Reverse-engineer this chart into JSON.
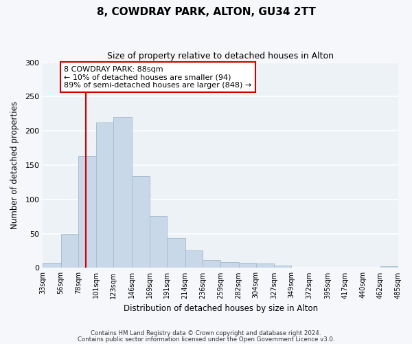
{
  "title": "8, COWDRAY PARK, ALTON, GU34 2TT",
  "subtitle": "Size of property relative to detached houses in Alton",
  "xlabel": "Distribution of detached houses by size in Alton",
  "ylabel": "Number of detached properties",
  "bar_color": "#c8d8e8",
  "bar_edgecolor": "#a8bece",
  "background_color": "#edf2f7",
  "fig_background_color": "#f5f7fa",
  "grid_color": "#ffffff",
  "bins": [
    33,
    56,
    78,
    101,
    123,
    146,
    169,
    191,
    214,
    236,
    259,
    282,
    304,
    327,
    349,
    372,
    395,
    417,
    440,
    462,
    485
  ],
  "counts": [
    7,
    50,
    163,
    212,
    220,
    134,
    76,
    44,
    26,
    11,
    8,
    7,
    6,
    3,
    0,
    0,
    0,
    0,
    0,
    2
  ],
  "property_size": 88,
  "vline_color": "#cc0000",
  "annotation_text": "8 COWDRAY PARK: 88sqm\n← 10% of detached houses are smaller (94)\n89% of semi-detached houses are larger (848) →",
  "annotation_box_edgecolor": "#cc0000",
  "ylim": [
    0,
    300
  ],
  "yticks": [
    0,
    50,
    100,
    150,
    200,
    250,
    300
  ],
  "footnote1": "Contains HM Land Registry data © Crown copyright and database right 2024.",
  "footnote2": "Contains public sector information licensed under the Open Government Licence v3.0."
}
